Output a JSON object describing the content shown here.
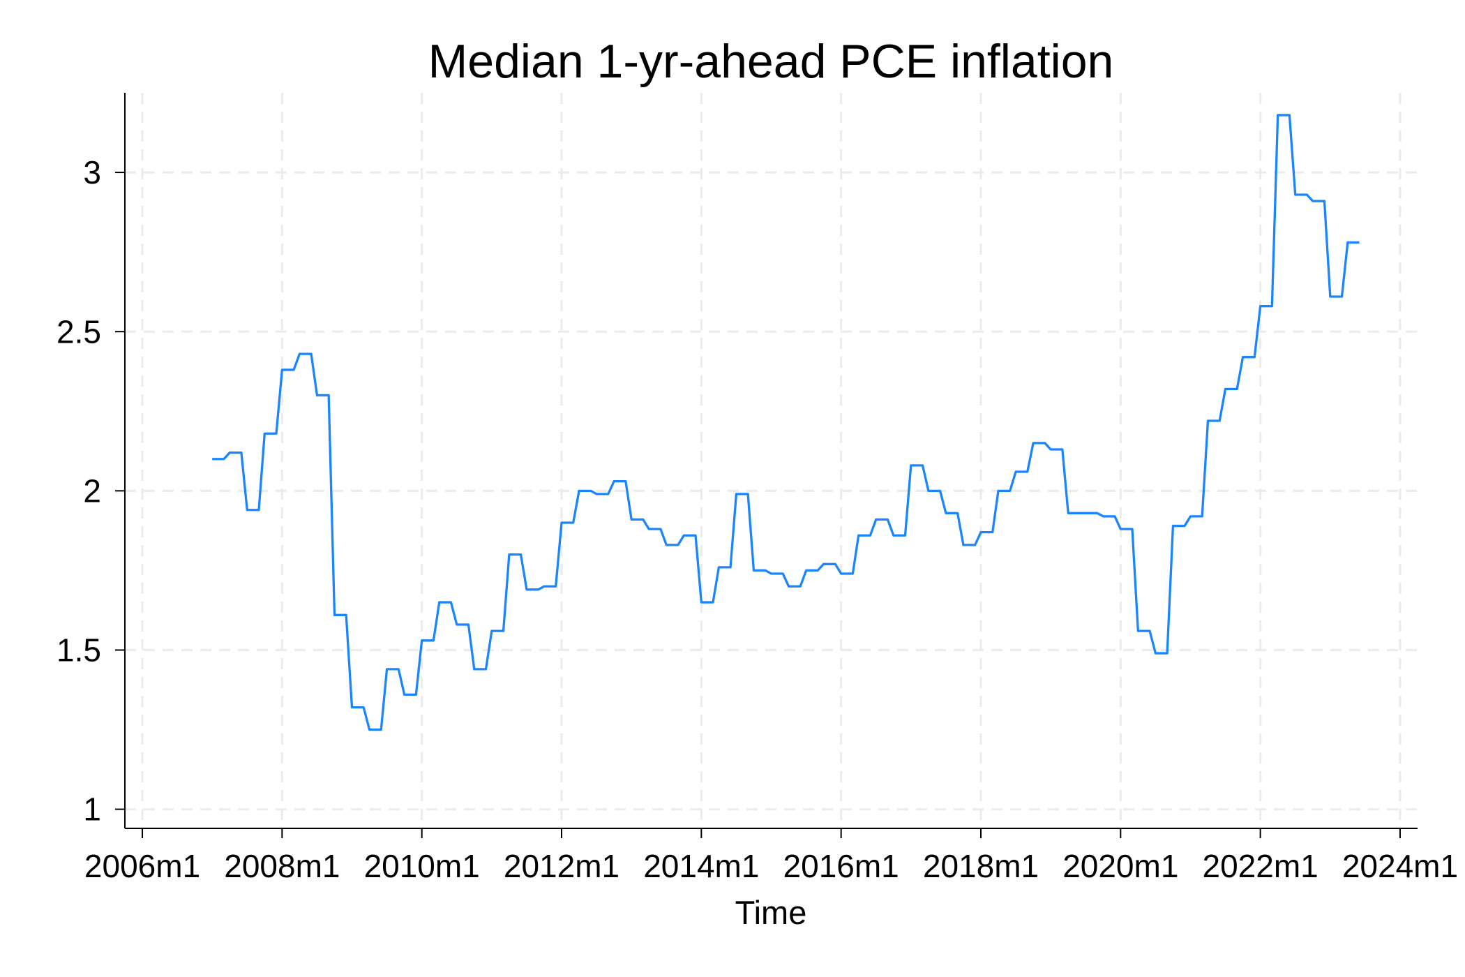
{
  "chart_data": {
    "type": "line",
    "title": "Median 1-yr-ahead PCE inflation",
    "xlabel": "Time",
    "xticks": [
      "2006m1",
      "2008m1",
      "2010m1",
      "2012m1",
      "2014m1",
      "2016m1",
      "2018m1",
      "2020m1",
      "2022m1",
      "2024m1"
    ],
    "yticks": [
      1,
      1.5,
      2,
      2.5,
      3
    ],
    "xlim": [
      "2005m10",
      "2024m4"
    ],
    "ylim": [
      0.94,
      3.25
    ],
    "grid": true,
    "colors": {
      "line": "#1a85ff",
      "grid": "#ebebeb",
      "axis": "#000000"
    },
    "series": [
      {
        "x": [
          "2007m1",
          "2007m2",
          "2007m3",
          "2007m4",
          "2007m5",
          "2007m6",
          "2007m7",
          "2007m8",
          "2007m9",
          "2007m10",
          "2007m11",
          "2007m12",
          "2008m1",
          "2008m2",
          "2008m3",
          "2008m4",
          "2008m5",
          "2008m6",
          "2008m7",
          "2008m8",
          "2008m9",
          "2008m10",
          "2008m11",
          "2008m12",
          "2009m1",
          "2009m2",
          "2009m3",
          "2009m4",
          "2009m5",
          "2009m6",
          "2009m7",
          "2009m8",
          "2009m9",
          "2009m10",
          "2009m11",
          "2009m12",
          "2010m1",
          "2010m2",
          "2010m3",
          "2010m4",
          "2010m5",
          "2010m6",
          "2010m7",
          "2010m8",
          "2010m9",
          "2010m10",
          "2010m11",
          "2010m12",
          "2011m1",
          "2011m2",
          "2011m3",
          "2011m4",
          "2011m5",
          "2011m6",
          "2011m7",
          "2011m8",
          "2011m9",
          "2011m10",
          "2011m11",
          "2011m12",
          "2012m1",
          "2012m2",
          "2012m3",
          "2012m4",
          "2012m5",
          "2012m6",
          "2012m7",
          "2012m8",
          "2012m9",
          "2012m10",
          "2012m11",
          "2012m12",
          "2013m1",
          "2013m2",
          "2013m3",
          "2013m4",
          "2013m5",
          "2013m6",
          "2013m7",
          "2013m8",
          "2013m9",
          "2013m10",
          "2013m11",
          "2013m12",
          "2014m1",
          "2014m2",
          "2014m3",
          "2014m4",
          "2014m5",
          "2014m6",
          "2014m7",
          "2014m8",
          "2014m9",
          "2014m10",
          "2014m11",
          "2014m12",
          "2015m1",
          "2015m2",
          "2015m3",
          "2015m4",
          "2015m5",
          "2015m6",
          "2015m7",
          "2015m8",
          "2015m9",
          "2015m10",
          "2015m11",
          "2015m12",
          "2016m1",
          "2016m2",
          "2016m3",
          "2016m4",
          "2016m5",
          "2016m6",
          "2016m7",
          "2016m8",
          "2016m9",
          "2016m10",
          "2016m11",
          "2016m12",
          "2017m1",
          "2017m2",
          "2017m3",
          "2017m4",
          "2017m5",
          "2017m6",
          "2017m7",
          "2017m8",
          "2017m9",
          "2017m10",
          "2017m11",
          "2017m12",
          "2018m1",
          "2018m2",
          "2018m3",
          "2018m4",
          "2018m5",
          "2018m6",
          "2018m7",
          "2018m8",
          "2018m9",
          "2018m10",
          "2018m11",
          "2018m12",
          "2019m1",
          "2019m2",
          "2019m3",
          "2019m4",
          "2019m5",
          "2019m6",
          "2019m7",
          "2019m8",
          "2019m9",
          "2019m10",
          "2019m11",
          "2019m12",
          "2020m1",
          "2020m2",
          "2020m3",
          "2020m4",
          "2020m5",
          "2020m6",
          "2020m7",
          "2020m8",
          "2020m9",
          "2020m10",
          "2020m11",
          "2020m12",
          "2021m1",
          "2021m2",
          "2021m3",
          "2021m4",
          "2021m5",
          "2021m6",
          "2021m7",
          "2021m8",
          "2021m9",
          "2021m10",
          "2021m11",
          "2021m12",
          "2022m1",
          "2022m2",
          "2022m3",
          "2022m4",
          "2022m5",
          "2022m6",
          "2022m7",
          "2022m8",
          "2022m9",
          "2022m10",
          "2022m11",
          "2022m12",
          "2023m1",
          "2023m2",
          "2023m3",
          "2023m4",
          "2023m5",
          "2023m6"
        ],
        "y": [
          2.1,
          2.1,
          2.1,
          2.12,
          2.12,
          2.12,
          1.94,
          1.94,
          1.94,
          2.18,
          2.18,
          2.18,
          2.38,
          2.38,
          2.38,
          2.43,
          2.43,
          2.43,
          2.3,
          2.3,
          2.3,
          1.61,
          1.61,
          1.61,
          1.32,
          1.32,
          1.32,
          1.25,
          1.25,
          1.25,
          1.44,
          1.44,
          1.44,
          1.36,
          1.36,
          1.36,
          1.53,
          1.53,
          1.53,
          1.65,
          1.65,
          1.65,
          1.58,
          1.58,
          1.58,
          1.44,
          1.44,
          1.44,
          1.56,
          1.56,
          1.56,
          1.8,
          1.8,
          1.8,
          1.69,
          1.69,
          1.69,
          1.7,
          1.7,
          1.7,
          1.9,
          1.9,
          1.9,
          2.0,
          2.0,
          2.0,
          1.99,
          1.99,
          1.99,
          2.03,
          2.03,
          2.03,
          1.91,
          1.91,
          1.91,
          1.88,
          1.88,
          1.88,
          1.83,
          1.83,
          1.83,
          1.86,
          1.86,
          1.86,
          1.65,
          1.65,
          1.65,
          1.76,
          1.76,
          1.76,
          1.99,
          1.99,
          1.99,
          1.75,
          1.75,
          1.75,
          1.74,
          1.74,
          1.74,
          1.7,
          1.7,
          1.7,
          1.75,
          1.75,
          1.75,
          1.77,
          1.77,
          1.77,
          1.74,
          1.74,
          1.74,
          1.86,
          1.86,
          1.86,
          1.91,
          1.91,
          1.91,
          1.86,
          1.86,
          1.86,
          2.08,
          2.08,
          2.08,
          2.0,
          2.0,
          2.0,
          1.93,
          1.93,
          1.93,
          1.83,
          1.83,
          1.83,
          1.87,
          1.87,
          1.87,
          2.0,
          2.0,
          2.0,
          2.06,
          2.06,
          2.06,
          2.15,
          2.15,
          2.15,
          2.13,
          2.13,
          2.13,
          1.93,
          1.93,
          1.93,
          1.93,
          1.93,
          1.93,
          1.92,
          1.92,
          1.92,
          1.88,
          1.88,
          1.88,
          1.56,
          1.56,
          1.56,
          1.49,
          1.49,
          1.49,
          1.89,
          1.89,
          1.89,
          1.92,
          1.92,
          1.92,
          2.22,
          2.22,
          2.22,
          2.32,
          2.32,
          2.32,
          2.42,
          2.42,
          2.42,
          2.58,
          2.58,
          2.58,
          3.18,
          3.18,
          3.18,
          2.93,
          2.93,
          2.93,
          2.91,
          2.91,
          2.91,
          2.61,
          2.61,
          2.61,
          2.78,
          2.78,
          2.78
        ]
      }
    ]
  }
}
